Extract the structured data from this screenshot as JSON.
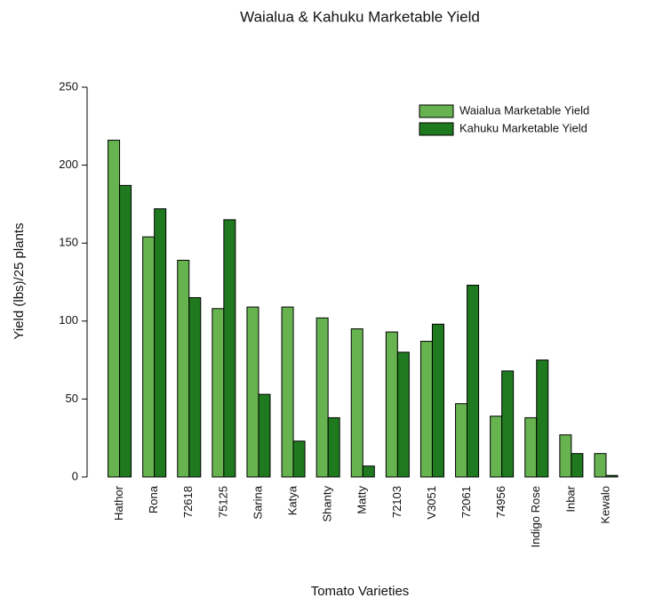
{
  "chart_data": {
    "type": "bar",
    "title": "Waialua & Kahuku Marketable Yield",
    "x_label": "Tomato Varieties",
    "y_label": "Yield (lbs)/25 plants",
    "categories": [
      "Hathor",
      "Rona",
      "72618",
      "75125",
      "Sarina",
      "Katya",
      "Shanty",
      "Matty",
      "72103",
      "V3051",
      "72061",
      "74956",
      "Indigo Rose",
      "Inbar",
      "Kewalo"
    ],
    "series": [
      {
        "name": "Waialua Marketable Yield",
        "color": "#66b34f",
        "values": [
          216,
          154,
          139,
          108,
          109,
          109,
          102,
          95,
          93,
          87,
          47,
          39,
          38,
          27,
          15
        ]
      },
      {
        "name": "Kahuku Marketable Yield",
        "color": "#1f7a1f",
        "values": [
          187,
          172,
          115,
          165,
          53,
          23,
          38,
          7,
          80,
          98,
          123,
          68,
          75,
          15,
          1
        ]
      }
    ],
    "ylim": [
      0,
      250
    ],
    "yticks": [
      0,
      50,
      100,
      150,
      200,
      250
    ],
    "legend": "top-right"
  }
}
